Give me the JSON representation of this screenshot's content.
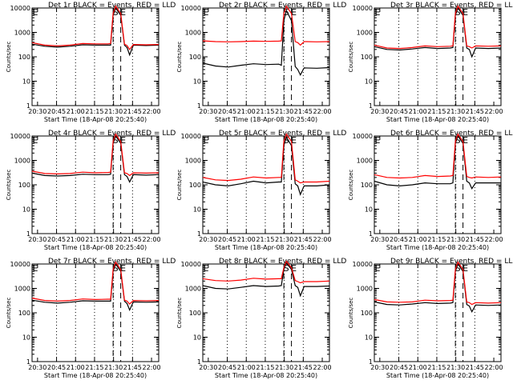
{
  "figure": {
    "xlabel": "Start Time (18-Apr-08 20:25:40)",
    "ylabel": "Counts/sec",
    "xticks": [
      "20:30",
      "20:45",
      "21:00",
      "21:15",
      "21:30",
      "21:45",
      "22:00"
    ],
    "yticks": [
      "1",
      "10",
      "100",
      "1000",
      "10000"
    ],
    "markers": [
      "S",
      "E"
    ]
  },
  "colors": {
    "events": "#000000",
    "lld": "#ff0000"
  },
  "chart_data": [
    {
      "type": "line",
      "title": "Det 1r BLACK = Events, RED = LLD",
      "xlabel": "Start Time (18-Apr-08 20:25:40)",
      "ylabel": "Counts/sec",
      "xlim_minutes_after_2025": [
        0,
        100
      ],
      "ylim": [
        1,
        10000
      ],
      "y_scale": "log",
      "x_minutes_after_2025": [
        0,
        10,
        20,
        30,
        40,
        50,
        60,
        62,
        64,
        66,
        70,
        73,
        75,
        77,
        80,
        90,
        100
      ],
      "series": [
        {
          "name": "Events",
          "values": [
            330,
            270,
            250,
            270,
            310,
            300,
            300,
            300,
            5000,
            10000,
            5000,
            300,
            240,
            120,
            300,
            290,
            300
          ]
        },
        {
          "name": "LLD",
          "values": [
            380,
            300,
            280,
            300,
            350,
            340,
            340,
            350,
            6000,
            12000,
            6000,
            330,
            290,
            200,
            320,
            310,
            320
          ]
        }
      ],
      "markers": [
        {
          "label": "S",
          "x_minutes_after_2025": 64
        },
        {
          "label": "E",
          "x_minutes_after_2025": 70
        }
      ]
    },
    {
      "type": "line",
      "title": "Det 2r BLACK = Events, RED = LLD",
      "xlabel": "Start Time (18-Apr-08 20:25:40)",
      "ylabel": "Counts/sec",
      "xlim_minutes_after_2025": [
        0,
        100
      ],
      "ylim": [
        1,
        10000
      ],
      "y_scale": "log",
      "x_minutes_after_2025": [
        0,
        10,
        20,
        30,
        40,
        50,
        60,
        62,
        64,
        66,
        70,
        73,
        75,
        77,
        80,
        90,
        100
      ],
      "series": [
        {
          "name": "Events",
          "values": [
            55,
            42,
            38,
            45,
            52,
            48,
            50,
            45,
            3000,
            8000,
            3000,
            40,
            30,
            18,
            35,
            34,
            36
          ]
        },
        {
          "name": "LLD",
          "values": [
            450,
            420,
            410,
            420,
            440,
            430,
            440,
            450,
            6000,
            12000,
            6000,
            420,
            380,
            300,
            420,
            410,
            420
          ]
        }
      ],
      "markers": [
        {
          "label": "S",
          "x_minutes_after_2025": 64
        },
        {
          "label": "E",
          "x_minutes_after_2025": 70
        }
      ]
    },
    {
      "type": "line",
      "title": "Det 3r BLACK = Events, RED = LLD",
      "xlabel": "Start Time (18-Apr-08 20:25:40)",
      "ylabel": "Counts/sec",
      "xlim_minutes_after_2025": [
        0,
        100
      ],
      "ylim": [
        1,
        10000
      ],
      "y_scale": "log",
      "x_minutes_after_2025": [
        0,
        10,
        20,
        30,
        40,
        50,
        60,
        62,
        64,
        66,
        70,
        73,
        75,
        77,
        80,
        90,
        100
      ],
      "series": [
        {
          "name": "Events",
          "values": [
            260,
            200,
            190,
            210,
            240,
            220,
            230,
            240,
            5000,
            10000,
            5000,
            230,
            200,
            100,
            230,
            220,
            230
          ]
        },
        {
          "name": "LLD",
          "values": [
            300,
            230,
            220,
            240,
            280,
            260,
            270,
            280,
            6000,
            12000,
            6000,
            280,
            260,
            230,
            280,
            270,
            280
          ]
        }
      ],
      "markers": [
        {
          "label": "S",
          "x_minutes_after_2025": 64
        },
        {
          "label": "E",
          "x_minutes_after_2025": 70
        }
      ]
    },
    {
      "type": "line",
      "title": "Det 4r BLACK = Events, RED = LLD",
      "xlabel": "Start Time (18-Apr-08 20:25:40)",
      "ylabel": "Counts/sec",
      "xlim_minutes_after_2025": [
        0,
        100
      ],
      "ylim": [
        1,
        10000
      ],
      "y_scale": "log",
      "x_minutes_after_2025": [
        0,
        10,
        20,
        30,
        40,
        50,
        60,
        62,
        64,
        66,
        70,
        73,
        75,
        77,
        80,
        90,
        100
      ],
      "series": [
        {
          "name": "Events",
          "values": [
            300,
            240,
            230,
            240,
            270,
            260,
            260,
            270,
            5000,
            10000,
            5000,
            260,
            220,
            130,
            260,
            250,
            260
          ]
        },
        {
          "name": "LLD",
          "values": [
            360,
            290,
            280,
            290,
            330,
            310,
            320,
            330,
            6000,
            12000,
            6000,
            310,
            290,
            240,
            310,
            300,
            310
          ]
        }
      ],
      "markers": [
        {
          "label": "S",
          "x_minutes_after_2025": 64
        },
        {
          "label": "E",
          "x_minutes_after_2025": 70
        }
      ]
    },
    {
      "type": "line",
      "title": "Det 5r BLACK = Events, RED = LLD",
      "xlabel": "Start Time (18-Apr-08 20:25:40)",
      "ylabel": "Counts/sec",
      "xlim_minutes_after_2025": [
        0,
        100
      ],
      "ylim": [
        1,
        10000
      ],
      "y_scale": "log",
      "x_minutes_after_2025": [
        0,
        10,
        20,
        30,
        40,
        50,
        60,
        62,
        64,
        66,
        70,
        73,
        75,
        77,
        80,
        90,
        100
      ],
      "series": [
        {
          "name": "Events",
          "values": [
            130,
            100,
            90,
            110,
            140,
            120,
            130,
            130,
            4000,
            9000,
            4000,
            110,
            90,
            40,
            90,
            90,
            100
          ]
        },
        {
          "name": "LLD",
          "values": [
            200,
            160,
            150,
            170,
            210,
            190,
            200,
            200,
            6000,
            12000,
            6000,
            160,
            140,
            120,
            130,
            130,
            140
          ]
        }
      ],
      "markers": [
        {
          "label": "S",
          "x_minutes_after_2025": 64
        },
        {
          "label": "E",
          "x_minutes_after_2025": 70
        }
      ]
    },
    {
      "type": "line",
      "title": "Det 6r BLACK = Events, RED = LLD",
      "xlabel": "Start Time (18-Apr-08 20:25:40)",
      "ylabel": "Counts/sec",
      "xlim_minutes_after_2025": [
        0,
        100
      ],
      "ylim": [
        1,
        10000
      ],
      "y_scale": "log",
      "x_minutes_after_2025": [
        0,
        10,
        20,
        30,
        40,
        50,
        60,
        62,
        64,
        66,
        70,
        73,
        75,
        77,
        80,
        90,
        100
      ],
      "series": [
        {
          "name": "Events",
          "values": [
            140,
            100,
            90,
            100,
            120,
            110,
            110,
            120,
            5000,
            10000,
            5000,
            140,
            120,
            70,
            120,
            120,
            120
          ]
        },
        {
          "name": "LLD",
          "values": [
            260,
            200,
            190,
            200,
            240,
            220,
            230,
            240,
            6000,
            12000,
            6000,
            220,
            200,
            190,
            210,
            200,
            210
          ]
        }
      ],
      "markers": [
        {
          "label": "S",
          "x_minutes_after_2025": 64
        },
        {
          "label": "E",
          "x_minutes_after_2025": 70
        }
      ]
    },
    {
      "type": "line",
      "title": "Det 7r BLACK = Events, RED = LLD",
      "xlabel": "Start Time (18-Apr-08 20:25:40)",
      "ylabel": "Counts/sec",
      "xlim_minutes_after_2025": [
        0,
        100
      ],
      "ylim": [
        1,
        10000
      ],
      "y_scale": "log",
      "x_minutes_after_2025": [
        0,
        10,
        20,
        30,
        40,
        50,
        60,
        62,
        64,
        66,
        70,
        73,
        75,
        77,
        80,
        90,
        100
      ],
      "series": [
        {
          "name": "Events",
          "values": [
            330,
            270,
            250,
            270,
            310,
            300,
            300,
            300,
            5000,
            10000,
            5000,
            300,
            240,
            130,
            280,
            270,
            280
          ]
        },
        {
          "name": "LLD",
          "values": [
            400,
            320,
            300,
            320,
            370,
            350,
            360,
            360,
            6000,
            12000,
            6000,
            330,
            300,
            230,
            320,
            310,
            320
          ]
        }
      ],
      "markers": [
        {
          "label": "S",
          "x_minutes_after_2025": 64
        },
        {
          "label": "E",
          "x_minutes_after_2025": 70
        }
      ]
    },
    {
      "type": "line",
      "title": "Det 8r BLACK = Events, RED = LLD",
      "xlabel": "Start Time (18-Apr-08 20:25:40)",
      "ylabel": "Counts/sec",
      "xlim_minutes_after_2025": [
        0,
        100
      ],
      "ylim": [
        1,
        10000
      ],
      "y_scale": "log",
      "x_minutes_after_2025": [
        0,
        10,
        20,
        30,
        40,
        50,
        60,
        62,
        64,
        66,
        70,
        73,
        75,
        77,
        80,
        90,
        100
      ],
      "series": [
        {
          "name": "Events",
          "values": [
            1300,
            1000,
            950,
            1100,
            1300,
            1200,
            1250,
            1300,
            6000,
            11000,
            6000,
            1300,
            1100,
            500,
            1200,
            1200,
            1250
          ]
        },
        {
          "name": "LLD",
          "values": [
            2500,
            2100,
            2000,
            2200,
            2600,
            2400,
            2500,
            2500,
            7000,
            13000,
            7000,
            2100,
            1900,
            1700,
            1900,
            1900,
            2000
          ]
        }
      ],
      "markers": [
        {
          "label": "S",
          "x_minutes_after_2025": 64
        },
        {
          "label": "E",
          "x_minutes_after_2025": 70
        }
      ]
    },
    {
      "type": "line",
      "title": "Det 9r BLACK = Events, RED = LLD",
      "xlabel": "Start Time (18-Apr-08 20:25:40)",
      "ylabel": "Counts/sec",
      "xlim_minutes_after_2025": [
        0,
        100
      ],
      "ylim": [
        1,
        10000
      ],
      "y_scale": "log",
      "x_minutes_after_2025": [
        0,
        10,
        20,
        30,
        40,
        50,
        60,
        62,
        64,
        66,
        70,
        73,
        75,
        77,
        80,
        90,
        100
      ],
      "series": [
        {
          "name": "Events",
          "values": [
            280,
            220,
            210,
            230,
            260,
            240,
            250,
            260,
            5000,
            10000,
            5000,
            220,
            190,
            110,
            210,
            200,
            210
          ]
        },
        {
          "name": "LLD",
          "values": [
            350,
            280,
            270,
            280,
            330,
            310,
            320,
            330,
            6000,
            12000,
            6000,
            280,
            260,
            220,
            260,
            250,
            260
          ]
        }
      ],
      "markers": [
        {
          "label": "S",
          "x_minutes_after_2025": 64
        },
        {
          "label": "E",
          "x_minutes_after_2025": 70
        }
      ]
    }
  ]
}
